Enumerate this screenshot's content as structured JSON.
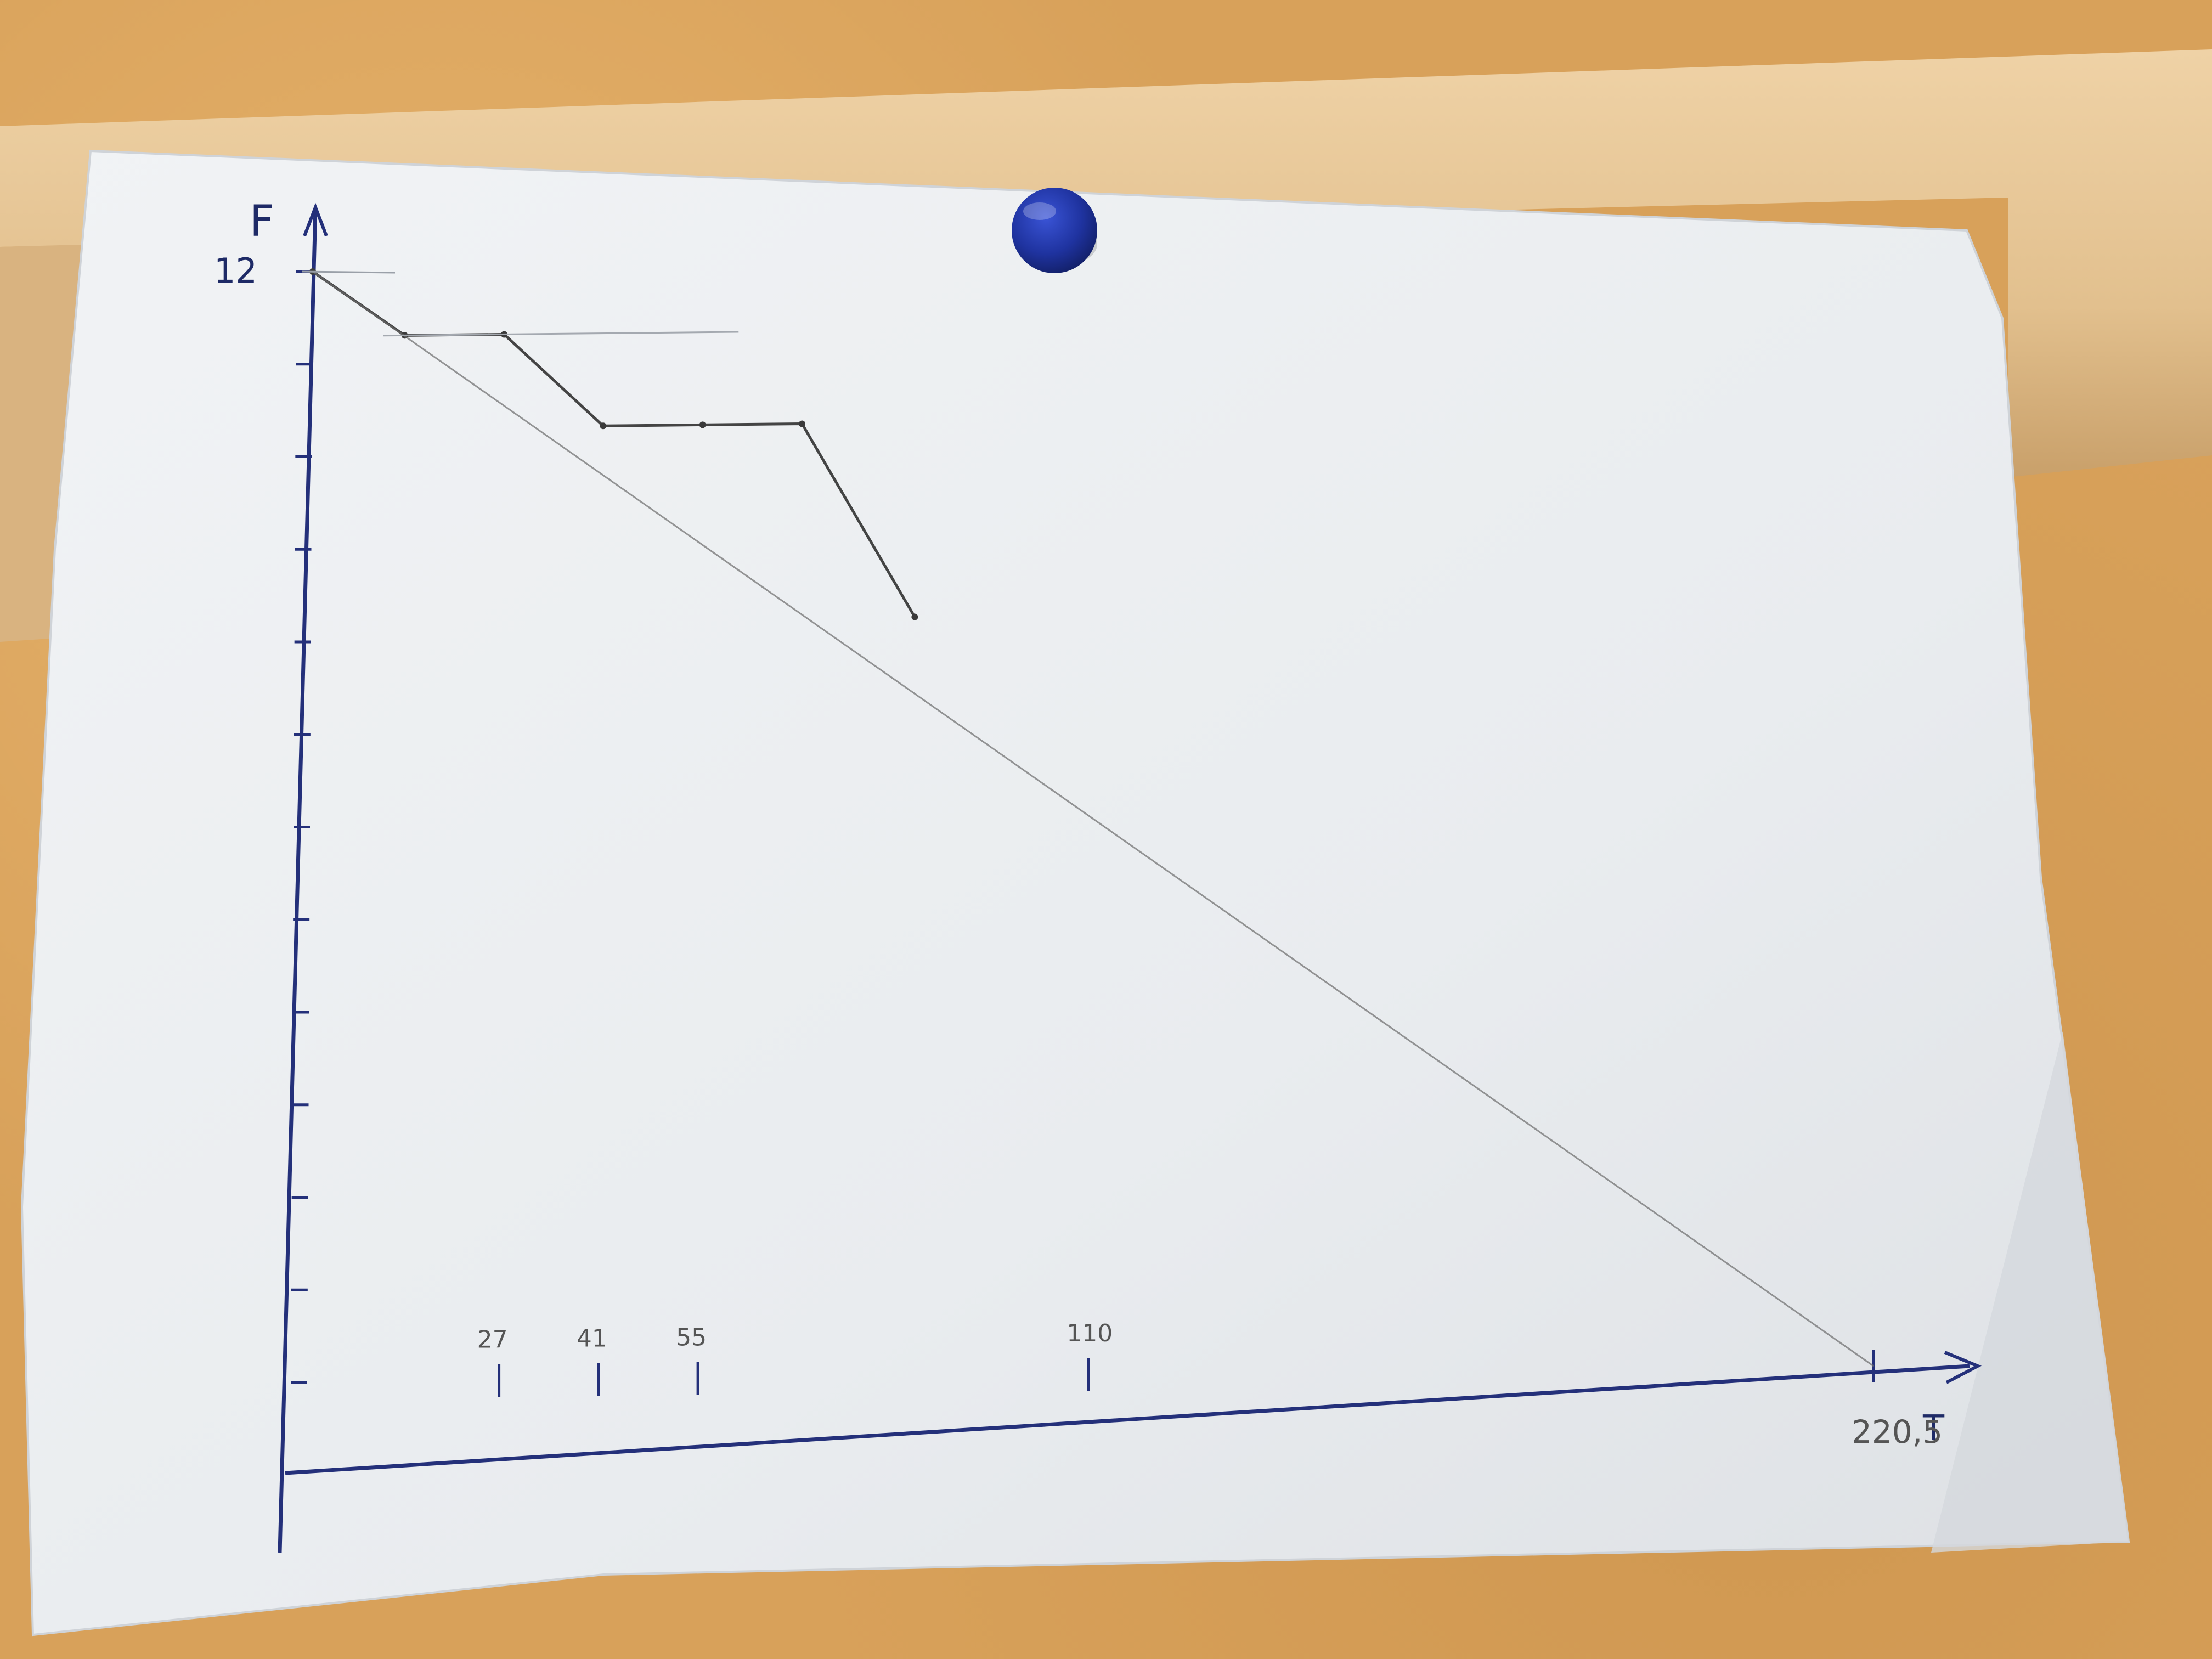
{
  "photo": {
    "subject": "hand-drawn graph on paper pinned to wall",
    "pin_color": "#1f33a0",
    "axis_ink_color": "#24307a",
    "pencil_color": "#4a4a4a",
    "paper_color": "#eceff2",
    "wall_color": "#d8a15a",
    "rail_color": "#e8c89a"
  },
  "chart_data": {
    "type": "line",
    "y_axis_label": "F",
    "x_axis_label": "T",
    "y_tick_labels": [
      "12"
    ],
    "x_tick_labels": [
      "27",
      "41",
      "55",
      "110",
      "220,5"
    ],
    "ylim": [
      0,
      12
    ],
    "xlim": [
      0,
      220.5
    ],
    "series": [
      {
        "style": "pencil-dark",
        "x": [
          0,
          13,
          27,
          41,
          55,
          69,
          85
        ],
        "y": [
          12,
          11.3,
          11.3,
          10.3,
          10.3,
          10.3,
          8.2
        ]
      },
      {
        "style": "pencil-light-straight",
        "x": [
          0,
          220.5
        ],
        "y": [
          12,
          0
        ]
      }
    ]
  }
}
